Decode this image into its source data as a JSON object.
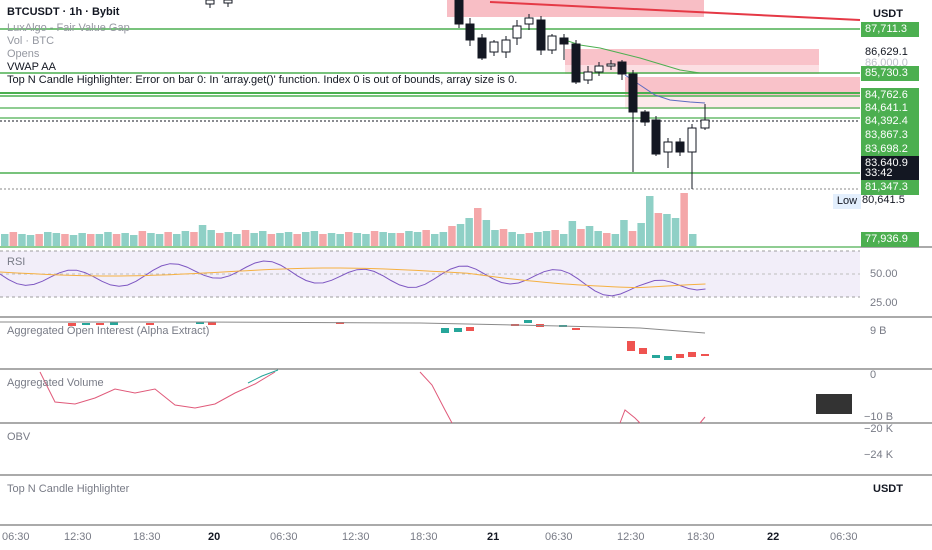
{
  "legend": {
    "symbol": "BTCUSDT · 1h · Bybit",
    "lines": [
      "LuxAlgo - Fair Value Gap",
      "Vol · BTC",
      "Opens",
      "VWAP AA"
    ],
    "error": "Top N Candle Highlighter: Error on bar 0: In 'array.get()' function. Index 0 is out of bounds, array size is 0."
  },
  "currency": "USDT",
  "price_labels": [
    {
      "text": "87,711.3",
      "style": "green"
    },
    {
      "text": "86,629.1",
      "style": "outline"
    },
    {
      "text": "86,000.0",
      "style": "faded"
    },
    {
      "text": "85,730.3",
      "style": "green"
    },
    {
      "text": "84,762.6",
      "style": "green"
    },
    {
      "text": "84,641.1",
      "style": "green"
    },
    {
      "text": "84,392.4",
      "style": "green"
    },
    {
      "text": "83,867.3",
      "style": "green"
    },
    {
      "text": "83,698.2",
      "style": "green"
    },
    {
      "text": "83,640.9",
      "style": "dark"
    },
    {
      "text": "33:42",
      "style": "dark"
    },
    {
      "text": "81,347.3",
      "style": "green"
    },
    {
      "text": "77,936.9",
      "style": "green"
    }
  ],
  "low": {
    "label": "Low",
    "value": "80,641.5"
  },
  "panes": {
    "rsi": {
      "title": "RSI",
      "ticks": [
        "50.00",
        "25.00"
      ]
    },
    "oi": {
      "title": "Aggregated Open Interest (Alpha Extract)",
      "ticks": [
        "9 B"
      ]
    },
    "agg_volume": {
      "title": "Aggregated Volume",
      "ticks": [
        "0",
        "−10 B"
      ]
    },
    "obv": {
      "title": "OBV",
      "ticks": [
        "−20 K",
        "−24 K"
      ]
    },
    "top_n": {
      "title": "Top N Candle Highlighter",
      "currency": "USDT"
    }
  },
  "time_axis": [
    {
      "label": "06:30",
      "bold": false
    },
    {
      "label": "12:30",
      "bold": false
    },
    {
      "label": "18:30",
      "bold": false
    },
    {
      "label": "20",
      "bold": true
    },
    {
      "label": "06:30",
      "bold": false
    },
    {
      "label": "12:30",
      "bold": false
    },
    {
      "label": "18:30",
      "bold": false
    },
    {
      "label": "21",
      "bold": true
    },
    {
      "label": "06:30",
      "bold": false
    },
    {
      "label": "12:30",
      "bold": false
    },
    {
      "label": "18:30",
      "bold": false
    },
    {
      "label": "22",
      "bold": true
    },
    {
      "label": "06:30",
      "bold": false
    }
  ],
  "colors": {
    "up": "#26a69a",
    "down": "#ef5350",
    "fvg": "#f7b3bb",
    "level": "#4caf50",
    "rsi": "#7e57c2",
    "rsi_ma": "#f5b041"
  }
}
